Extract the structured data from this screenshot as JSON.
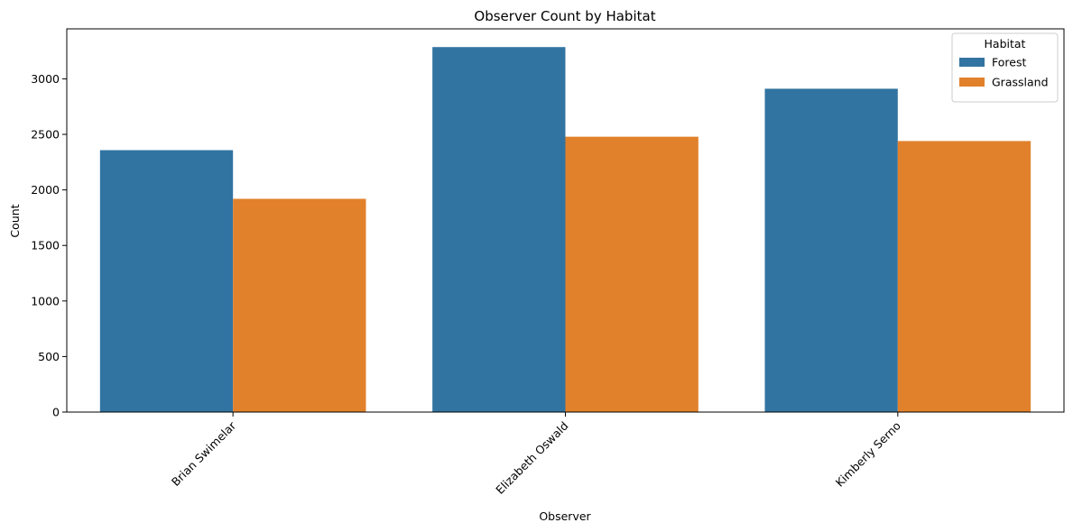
{
  "chart_data": {
    "type": "bar",
    "title": "Observer Count by Habitat",
    "xlabel": "Observer",
    "ylabel": "Count",
    "categories": [
      "Brian Swimelar",
      "Elizabeth Oswald",
      "Kimberly Serno"
    ],
    "series": [
      {
        "name": "Forest",
        "color": "#3274a1",
        "values": [
          2358,
          3286,
          2911
        ]
      },
      {
        "name": "Grassland",
        "color": "#e1812c",
        "values": [
          1920,
          2479,
          2440
        ]
      }
    ],
    "ylim": [
      0,
      3450
    ],
    "yticks": [
      0,
      500,
      1000,
      1500,
      2000,
      2500,
      3000
    ],
    "legend": {
      "title": "Habitat",
      "placement": "top-right"
    },
    "grid": false
  }
}
